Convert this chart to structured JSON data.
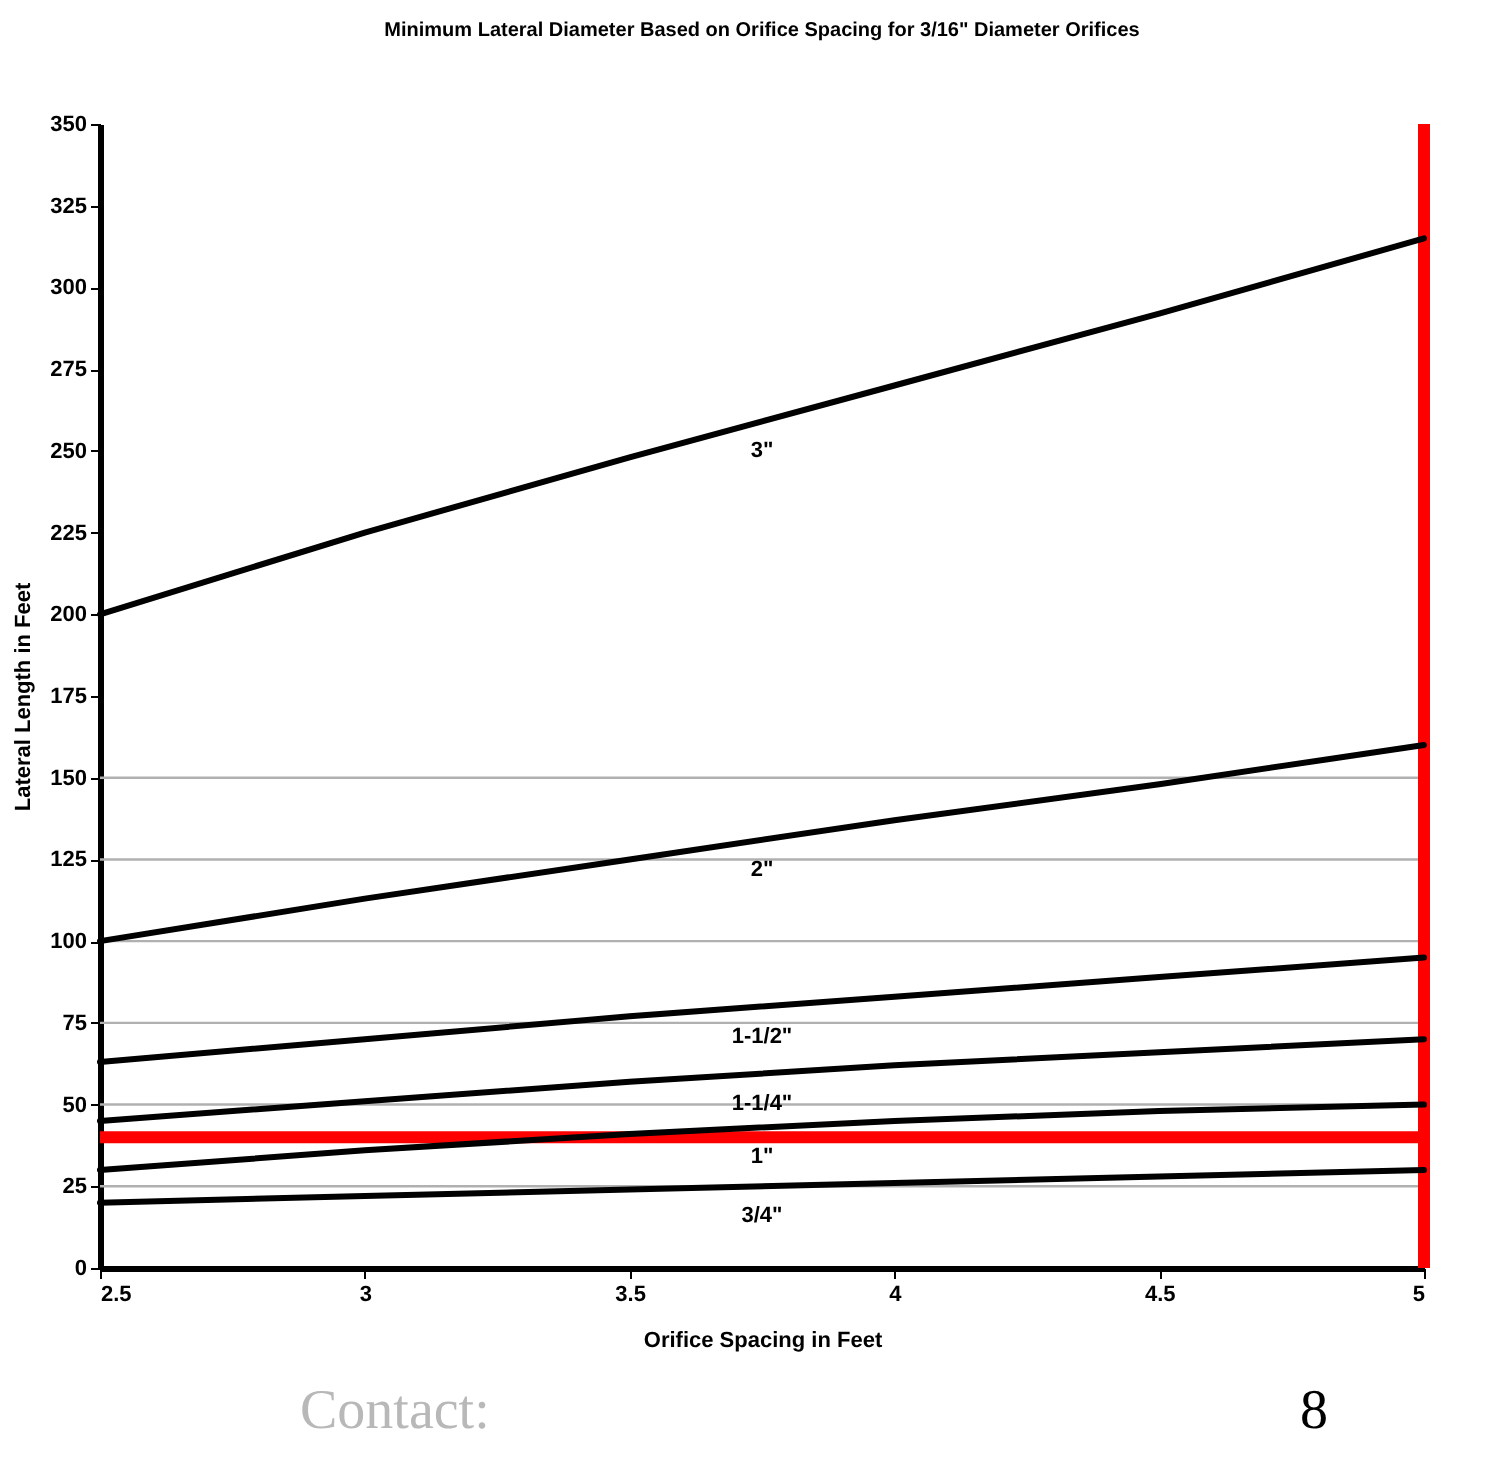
{
  "chart_data": {
    "type": "line",
    "title": "Minimum Lateral Diameter Based on Orifice Spacing for 3/16\" Diameter Orifices",
    "xlabel": "Orifice Spacing in Feet",
    "ylabel": "Lateral Length in Feet",
    "x": [
      2.5,
      3,
      3.5,
      4,
      4.5,
      5
    ],
    "series": [
      {
        "name": "3\"",
        "color": "#000000",
        "values": [
          200,
          225,
          248,
          270,
          292,
          315
        ]
      },
      {
        "name": "2\"",
        "color": "#000000",
        "values": [
          100,
          113,
          125,
          137,
          148,
          160
        ]
      },
      {
        "name": "1-1/2\"",
        "color": "#000000",
        "values": [
          63,
          70,
          77,
          83,
          89,
          95
        ]
      },
      {
        "name": "1-1/4\"",
        "color": "#000000",
        "values": [
          45,
          51,
          57,
          62,
          66,
          70
        ]
      },
      {
        "name": "1\"",
        "color": "#000000",
        "values": [
          30,
          36,
          41,
          45,
          48,
          50
        ]
      },
      {
        "name": "3/4\"",
        "color": "#000000",
        "values": [
          20,
          22,
          24,
          26,
          28,
          30
        ]
      }
    ],
    "xlim": [
      2.5,
      5
    ],
    "xticks": [
      2.5,
      3,
      3.5,
      4,
      4.5,
      5
    ],
    "ylim": [
      0,
      350
    ],
    "yticks": [
      0,
      25,
      50,
      75,
      100,
      125,
      150,
      175,
      200,
      225,
      250,
      275,
      300,
      325,
      350
    ],
    "ref_lines": [
      {
        "axis": "y",
        "value": 25,
        "color": "#b0b0b0"
      },
      {
        "axis": "y",
        "value": 50,
        "color": "#b0b0b0"
      },
      {
        "axis": "y",
        "value": 75,
        "color": "#b0b0b0"
      },
      {
        "axis": "y",
        "value": 100,
        "color": "#b0b0b0"
      },
      {
        "axis": "y",
        "value": 125,
        "color": "#b0b0b0"
      },
      {
        "axis": "y",
        "value": 150,
        "color": "#b0b0b0"
      },
      {
        "axis": "y",
        "value": 40,
        "color": "#ff0000"
      },
      {
        "axis": "x",
        "value": 5,
        "color": "#ff0000"
      }
    ],
    "annotations": [
      "Contact:",
      "8"
    ]
  }
}
